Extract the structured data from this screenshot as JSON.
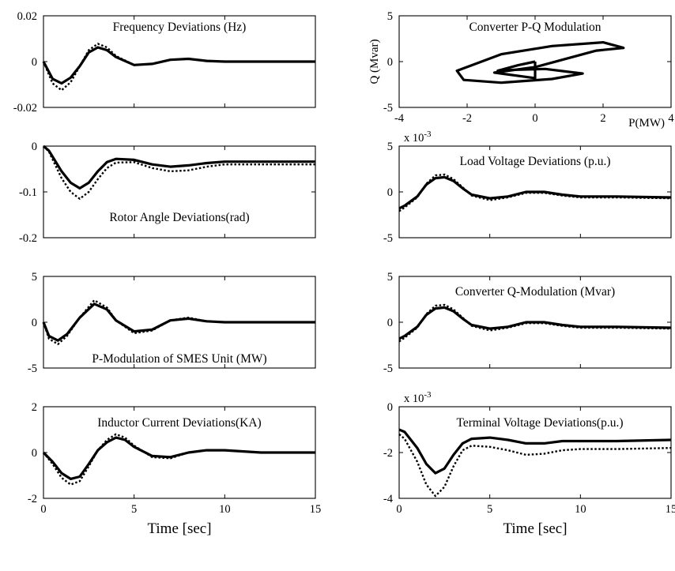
{
  "chart_data": [
    {
      "type": "line",
      "title": "Frequency Deviations (Hz)",
      "xlim": [
        0,
        15
      ],
      "ylim": [
        -0.02,
        0.02
      ],
      "xticks": [],
      "yticks": [
        "0.02",
        "0",
        "-0.02"
      ],
      "grid": false,
      "series": [
        {
          "style": "solid",
          "x": [
            0,
            0.5,
            1,
            1.5,
            2,
            2.5,
            3,
            3.5,
            4,
            5,
            6,
            7,
            8,
            9,
            10,
            12,
            15
          ],
          "y": [
            0,
            -0.0075,
            -0.0095,
            -0.007,
            -0.002,
            0.004,
            0.0062,
            0.005,
            0.002,
            -0.0015,
            -0.001,
            0.0008,
            0.0012,
            0.0003,
            0,
            0,
            0
          ]
        },
        {
          "style": "dotted",
          "x": [
            0,
            0.5,
            1,
            1.5,
            2,
            2.5,
            3,
            3.5,
            4,
            5,
            6,
            7,
            8,
            9,
            10,
            12,
            15
          ],
          "y": [
            0,
            -0.0095,
            -0.0125,
            -0.009,
            -0.002,
            0.005,
            0.0078,
            0.0062,
            0.0025,
            -0.0015,
            -0.001,
            0.0008,
            0.0012,
            0.0003,
            0,
            0,
            0
          ]
        }
      ]
    },
    {
      "type": "line",
      "title": "Converter P-Q Modulation",
      "xlim": [
        -4,
        4
      ],
      "ylim": [
        -5,
        5
      ],
      "xticks": [
        "-4",
        "-2",
        "0",
        "2",
        "4"
      ],
      "yticks": [
        "5",
        "0",
        "-5"
      ],
      "xlabel": "P(MW)",
      "ylabel": "Q (Mvar)",
      "grid": false,
      "series": [
        {
          "style": "solid",
          "x": [
            0,
            0,
            -1.2,
            0,
            0.5,
            1.8,
            2.6,
            2,
            0.5,
            -1,
            -2.3,
            -2.1,
            -1,
            0.5,
            1.4,
            0.3,
            -0.6,
            -1.1,
            -0.5,
            0
          ],
          "y": [
            0,
            -1.8,
            -1.2,
            -0.6,
            -0.1,
            1.2,
            1.5,
            2.1,
            1.7,
            0.8,
            -1,
            -2,
            -2.3,
            -1.9,
            -1.3,
            -0.8,
            -0.9,
            -1,
            -0.4,
            0
          ]
        }
      ]
    },
    {
      "type": "line",
      "title": "Rotor Angle Deviations(rad)",
      "xlim": [
        0,
        15
      ],
      "ylim": [
        -0.2,
        0
      ],
      "xticks": [],
      "yticks": [
        "0",
        "-0.1",
        "-0.2"
      ],
      "grid": false,
      "series": [
        {
          "style": "solid",
          "x": [
            0,
            0.3,
            1,
            1.5,
            2,
            2.5,
            3,
            3.5,
            4,
            5,
            6,
            7,
            8,
            9,
            10,
            12,
            15
          ],
          "y": [
            0,
            -0.01,
            -0.055,
            -0.08,
            -0.092,
            -0.08,
            -0.055,
            -0.035,
            -0.028,
            -0.03,
            -0.04,
            -0.045,
            -0.042,
            -0.037,
            -0.034,
            -0.034,
            -0.034
          ]
        },
        {
          "style": "dotted",
          "x": [
            0,
            0.3,
            1,
            1.5,
            2,
            2.5,
            3,
            3.5,
            4,
            5,
            6,
            7,
            8,
            9,
            10,
            12,
            15
          ],
          "y": [
            0,
            -0.012,
            -0.07,
            -0.1,
            -0.115,
            -0.1,
            -0.072,
            -0.048,
            -0.036,
            -0.035,
            -0.048,
            -0.055,
            -0.053,
            -0.045,
            -0.04,
            -0.04,
            -0.04
          ]
        }
      ]
    },
    {
      "type": "line",
      "title": "Load Voltage Deviations (p.u.)",
      "xlim": [
        0,
        15
      ],
      "ylim": [
        -5,
        5
      ],
      "exponent": "x 10-3",
      "xticks": [],
      "yticks": [
        "5",
        "0",
        "-5"
      ],
      "grid": false,
      "series": [
        {
          "style": "solid",
          "x": [
            0,
            0.3,
            1,
            1.5,
            2,
            2.5,
            3,
            3.5,
            4,
            5,
            6,
            7,
            8,
            9,
            10,
            12,
            15
          ],
          "y": [
            -1.8,
            -1.5,
            -0.5,
            0.8,
            1.5,
            1.6,
            1.2,
            0.4,
            -0.3,
            -0.7,
            -0.5,
            0,
            0,
            -0.3,
            -0.5,
            -0.5,
            -0.6
          ]
        },
        {
          "style": "dotted",
          "x": [
            0,
            0.3,
            1,
            1.5,
            2,
            2.5,
            3,
            3.5,
            4,
            5,
            6,
            7,
            8,
            9,
            10,
            12,
            15
          ],
          "y": [
            -2.1,
            -1.7,
            -0.6,
            0.9,
            1.8,
            1.9,
            1.4,
            0.5,
            -0.4,
            -0.9,
            -0.6,
            -0.1,
            -0.1,
            -0.4,
            -0.6,
            -0.6,
            -0.7
          ]
        }
      ]
    },
    {
      "type": "line",
      "title": "P-Modulation of SMES Unit (MW)",
      "xlim": [
        0,
        15
      ],
      "ylim": [
        -5,
        5
      ],
      "xticks": [],
      "yticks": [
        "5",
        "0",
        "-5"
      ],
      "grid": false,
      "series": [
        {
          "style": "solid",
          "x": [
            0,
            0.3,
            0.8,
            1.3,
            2,
            2.8,
            3.5,
            4,
            5,
            6,
            7,
            8,
            9,
            10,
            12,
            15
          ],
          "y": [
            0,
            -1.5,
            -2,
            -1.3,
            0.5,
            2,
            1.4,
            0.2,
            -1,
            -0.8,
            0.2,
            0.4,
            0.1,
            0,
            0,
            0
          ]
        },
        {
          "style": "dotted",
          "x": [
            0,
            0.3,
            0.8,
            1.3,
            2,
            2.8,
            3.5,
            4,
            5,
            6,
            7,
            8,
            9,
            10,
            12,
            15
          ],
          "y": [
            0,
            -1.8,
            -2.4,
            -1.5,
            0.5,
            2.4,
            1.6,
            0.2,
            -1.2,
            -0.9,
            0.2,
            0.5,
            0.1,
            0,
            0,
            0
          ]
        }
      ]
    },
    {
      "type": "line",
      "title": "Converter Q-Modulation (Mvar)",
      "xlim": [
        0,
        15
      ],
      "ylim": [
        -5,
        5
      ],
      "xticks": [],
      "yticks": [
        "5",
        "0",
        "-5"
      ],
      "grid": false,
      "series": [
        {
          "style": "solid",
          "x": [
            0,
            0.3,
            1,
            1.5,
            2,
            2.5,
            3,
            3.5,
            4,
            5,
            6,
            7,
            8,
            9,
            10,
            12,
            15
          ],
          "y": [
            -1.8,
            -1.5,
            -0.5,
            0.8,
            1.5,
            1.6,
            1.2,
            0.4,
            -0.3,
            -0.7,
            -0.5,
            0,
            0,
            -0.3,
            -0.5,
            -0.5,
            -0.6
          ]
        },
        {
          "style": "dotted",
          "x": [
            0,
            0.3,
            1,
            1.5,
            2,
            2.5,
            3,
            3.5,
            4,
            5,
            6,
            7,
            8,
            9,
            10,
            12,
            15
          ],
          "y": [
            -2.1,
            -1.7,
            -0.6,
            0.9,
            1.8,
            1.9,
            1.4,
            0.5,
            -0.4,
            -0.9,
            -0.6,
            -0.1,
            -0.1,
            -0.4,
            -0.6,
            -0.6,
            -0.7
          ]
        }
      ]
    },
    {
      "type": "line",
      "title": "Inductor Current Deviations(KA)",
      "xlim": [
        0,
        15
      ],
      "ylim": [
        -2,
        2
      ],
      "xticks": [
        "0",
        "5",
        "10",
        "15"
      ],
      "yticks": [
        "2",
        "0",
        "-2"
      ],
      "xlabel": "Time [sec]",
      "grid": false,
      "series": [
        {
          "style": "solid",
          "x": [
            0,
            0.5,
            1,
            1.5,
            2,
            2.5,
            3,
            3.5,
            4,
            4.5,
            5,
            6,
            7,
            8,
            9,
            10,
            12,
            15
          ],
          "y": [
            0,
            -0.4,
            -0.9,
            -1.15,
            -1.05,
            -0.5,
            0.1,
            0.45,
            0.65,
            0.55,
            0.25,
            -0.15,
            -0.2,
            0,
            0.1,
            0.1,
            0,
            0
          ]
        },
        {
          "style": "dotted",
          "x": [
            0,
            0.5,
            1,
            1.5,
            2,
            2.5,
            3,
            3.5,
            4,
            4.5,
            5,
            6,
            7,
            8,
            9,
            10,
            12,
            15
          ],
          "y": [
            0,
            -0.5,
            -1.1,
            -1.4,
            -1.25,
            -0.6,
            0.1,
            0.55,
            0.8,
            0.65,
            0.3,
            -0.2,
            -0.25,
            0,
            0.1,
            0.1,
            0,
            0
          ]
        }
      ]
    },
    {
      "type": "line",
      "title": "Terminal Voltage Deviations(p.u.)",
      "xlim": [
        0,
        15
      ],
      "ylim": [
        -4,
        0
      ],
      "exponent": "x 10-3",
      "xticks": [
        "0",
        "5",
        "10",
        "15"
      ],
      "yticks": [
        "0",
        "-2",
        "-4"
      ],
      "xlabel": "Time [sec]",
      "grid": false,
      "series": [
        {
          "style": "solid",
          "x": [
            0,
            0.3,
            1,
            1.5,
            2,
            2.5,
            3,
            3.5,
            4,
            5,
            6,
            7,
            8,
            9,
            10,
            12,
            15
          ],
          "y": [
            -1,
            -1.1,
            -1.8,
            -2.5,
            -2.9,
            -2.7,
            -2.1,
            -1.6,
            -1.4,
            -1.35,
            -1.45,
            -1.6,
            -1.6,
            -1.5,
            -1.5,
            -1.5,
            -1.45
          ]
        },
        {
          "style": "dotted",
          "x": [
            0,
            0.3,
            1,
            1.5,
            2,
            2.5,
            3,
            3.5,
            4,
            5,
            6,
            7,
            8,
            9,
            10,
            12,
            15
          ],
          "y": [
            -1.2,
            -1.4,
            -2.4,
            -3.4,
            -3.9,
            -3.5,
            -2.6,
            -1.9,
            -1.7,
            -1.75,
            -1.9,
            -2.1,
            -2.05,
            -1.9,
            -1.85,
            -1.85,
            -1.8
          ]
        }
      ]
    }
  ]
}
